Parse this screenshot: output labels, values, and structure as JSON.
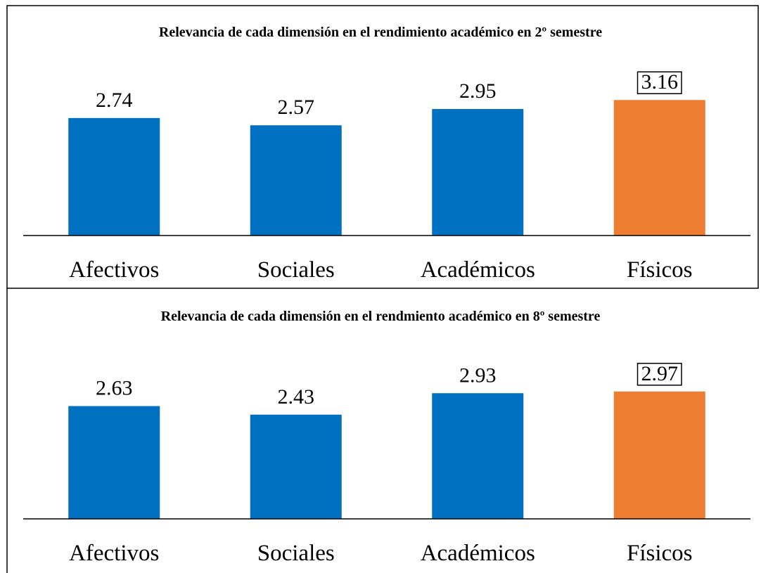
{
  "chart_data": [
    {
      "type": "bar",
      "title": "Relevancia de cada dimensión en el rendimiento académico en 2º semestre",
      "categories": [
        "Afectivos",
        "Sociales",
        "Académicos",
        "Físicos"
      ],
      "values": [
        2.74,
        2.57,
        2.95,
        3.16
      ],
      "colors": [
        "#0070c0",
        "#0070c0",
        "#0070c0",
        "#ed7d31"
      ],
      "boxed_labels": [
        false,
        false,
        false,
        true
      ],
      "ylim": [
        0,
        4
      ]
    },
    {
      "type": "bar",
      "title": "Relevancia de cada dimensión en el rendmiento académico en 8º semestre",
      "categories": [
        "Afectivos",
        "Sociales",
        "Académicos",
        "Físicos"
      ],
      "values": [
        2.63,
        2.43,
        2.93,
        2.97
      ],
      "colors": [
        "#0070c0",
        "#0070c0",
        "#0070c0",
        "#ed7d31"
      ],
      "boxed_labels": [
        false,
        false,
        false,
        true
      ],
      "ylim": [
        0,
        4
      ]
    }
  ]
}
